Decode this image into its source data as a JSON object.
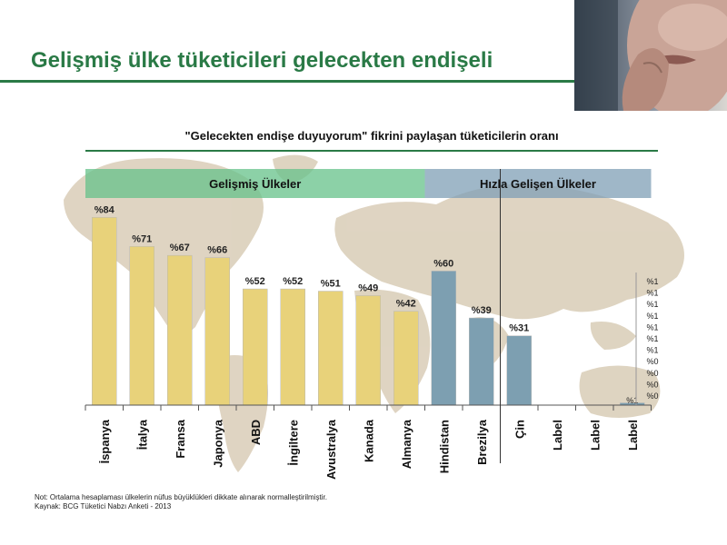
{
  "header": {
    "title": "Gelişmiş ülke tüketicileri gelecekten endişeli"
  },
  "footnotes": {
    "note": "Not: Ortalama hesaplaması ülkelerin nüfus büyüklükleri dikkate alınarak normalleştirilmiştir.",
    "source": "Kaynak: BCG Tüketici Nabzı Anketi - 2013"
  },
  "colors": {
    "brand_green": "#2a7a46",
    "developed_bar": "#e8d27a",
    "emerging_bar": "#7d9fb1",
    "developed_band": "#66c28a",
    "emerging_band": "#7f9fb5"
  },
  "chart_data": {
    "type": "bar",
    "title": "\"Gelecekten endişe duyuyorum\" fikrini paylaşan tüketicilerin oranı",
    "groups": [
      {
        "name": "Gelişmiş Ülkeler",
        "start": 0,
        "end": 8
      },
      {
        "name": "Hızla Gelişen Ülkeler",
        "start": 9,
        "end": 14
      }
    ],
    "categories": [
      "İspanya",
      "İtalya",
      "Fransa",
      "Japonya",
      "ABD",
      "İngiltere",
      "Avustralya",
      "Kanada",
      "Almanya",
      "Hindistan",
      "Brezilya",
      "Çin",
      "Label",
      "Label",
      "Label"
    ],
    "values": [
      84,
      71,
      67,
      66,
      52,
      52,
      51,
      49,
      42,
      60,
      39,
      31,
      0,
      0,
      1
    ],
    "data_labels": [
      "%84",
      "%71",
      "%67",
      "%66",
      "%52",
      "%52",
      "%51",
      "%49",
      "%42",
      "%60",
      "%39",
      "%31",
      "",
      "",
      "%1"
    ],
    "bar_groups": [
      "developed",
      "developed",
      "developed",
      "developed",
      "developed",
      "developed",
      "developed",
      "developed",
      "developed",
      "emerging",
      "emerging",
      "emerging",
      "emerging",
      "emerging",
      "emerging"
    ],
    "divider_after_index": 10,
    "ylim": [
      0,
      100
    ],
    "stray_tick_labels": [
      "%1",
      "%1",
      "%1",
      "%1",
      "%1",
      "%1",
      "%1",
      "%0",
      "%0",
      "%0",
      "%0"
    ],
    "legend": "none",
    "grid": false
  }
}
